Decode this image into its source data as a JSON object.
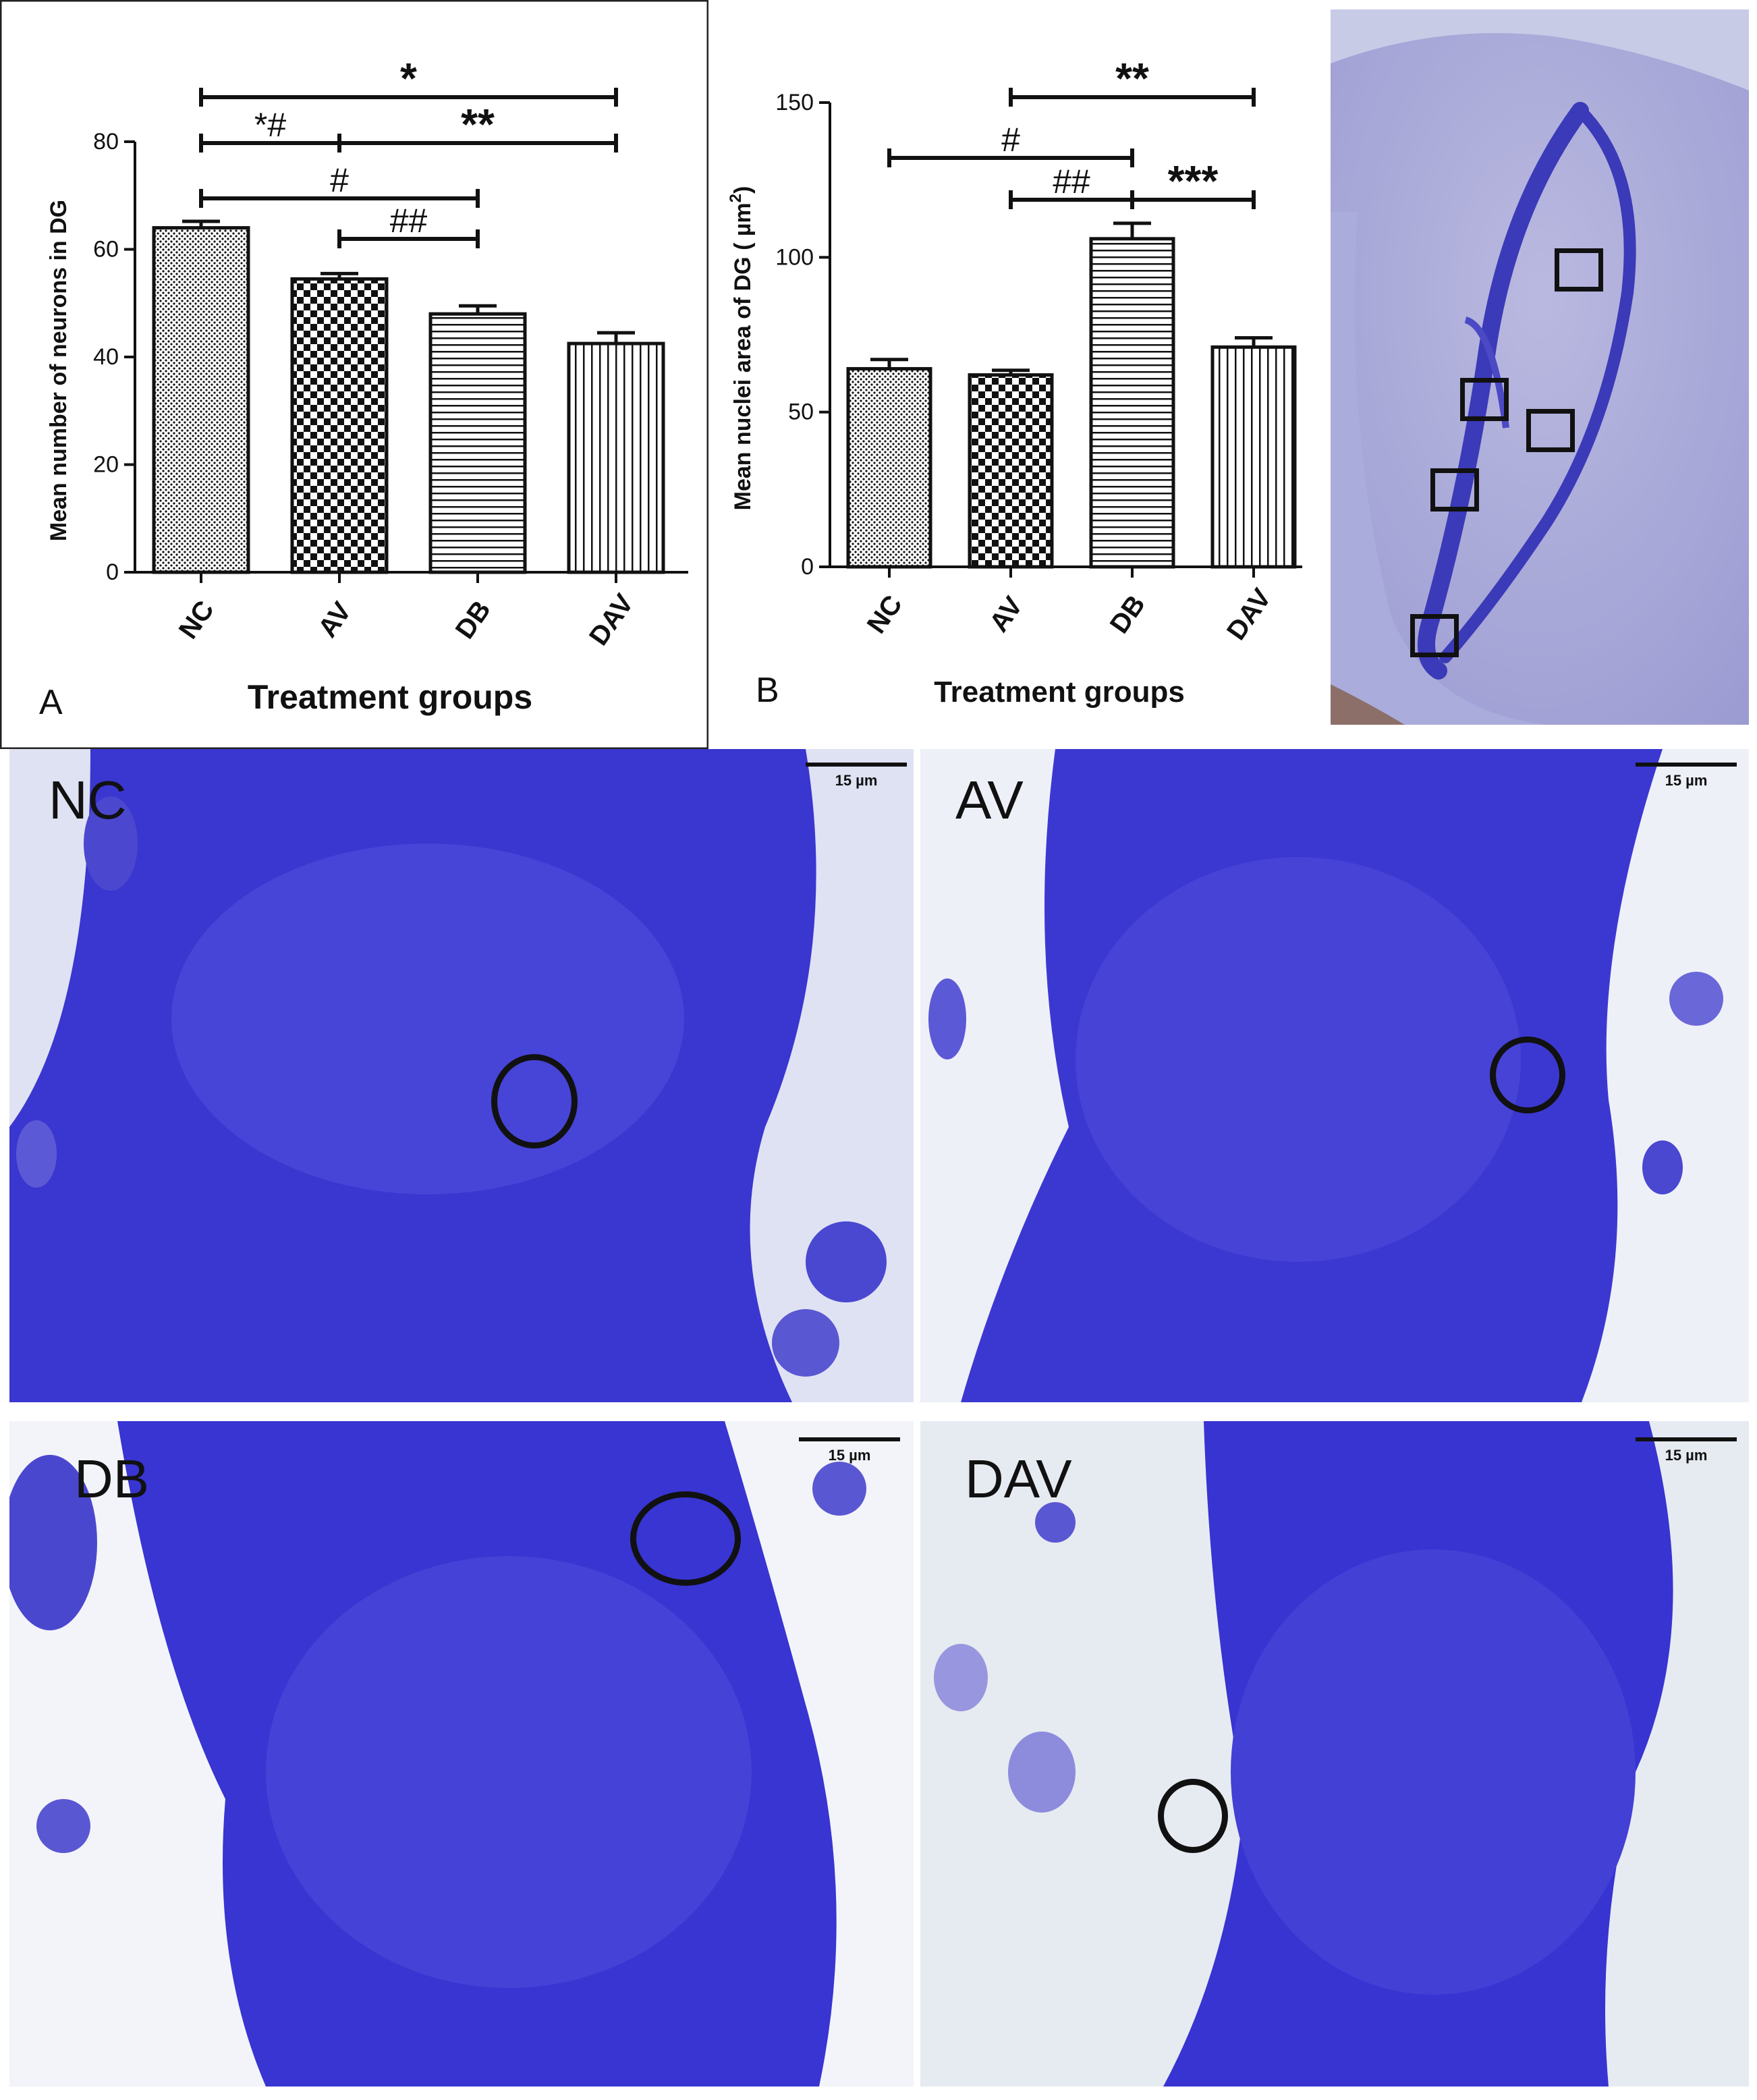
{
  "chart_data": [
    {
      "panel_letter": "A",
      "type": "bar",
      "categories": [
        "NC",
        "AV",
        "DB",
        "DAV"
      ],
      "values": [
        64,
        54.5,
        48,
        42.5
      ],
      "error": [
        1.2,
        1.0,
        1.5,
        2.0
      ],
      "patterns": [
        "dots",
        "checker",
        "hlines",
        "vlines"
      ],
      "ylabel": "Mean number of neurons in DG",
      "xlabel": "Treatment groups",
      "ylim": [
        0,
        80
      ],
      "yticks": [
        0,
        20,
        40,
        60,
        80
      ],
      "annotations": [
        {
          "label": "*",
          "from": "NC",
          "to": "DAV"
        },
        {
          "label": "*#",
          "from": "NC",
          "to": "AV"
        },
        {
          "label": "**",
          "from": "AV",
          "to": "DAV"
        },
        {
          "label": "#",
          "from": "NC",
          "to": "DB"
        },
        {
          "label": "##",
          "from": "AV",
          "to": "DB"
        }
      ]
    },
    {
      "panel_letter": "B",
      "type": "bar",
      "categories": [
        "NC",
        "AV",
        "DB",
        "DAV"
      ],
      "values": [
        64,
        62,
        106,
        71
      ],
      "error": [
        3,
        1.5,
        5,
        3
      ],
      "patterns": [
        "dots",
        "checker",
        "hlines",
        "vlines"
      ],
      "ylabel_prefix": "Mean nuclei area of DG ( ",
      "ylabel_unit": "µm",
      "ylabel_sup": "2",
      "ylabel_suffix": ")",
      "xlabel": "Treatment groups",
      "ylim": [
        0,
        150
      ],
      "yticks": [
        0,
        50,
        100,
        150
      ],
      "annotations": [
        {
          "label": "**",
          "from": "AV",
          "to": "DAV"
        },
        {
          "label": "#",
          "from": "NC",
          "to": "DB"
        },
        {
          "label": "##",
          "from": "AV",
          "to": "DB"
        },
        {
          "label": "***",
          "from": "DB",
          "to": "DAV"
        }
      ]
    }
  ],
  "micrographs": [
    {
      "label": "NC",
      "scale": "15 µm"
    },
    {
      "label": "AV",
      "scale": "15 µm"
    },
    {
      "label": "DB",
      "scale": "15 µm"
    },
    {
      "label": "DAV",
      "scale": "15 µm"
    }
  ],
  "colors": {
    "stain": "#3d3ad6",
    "background": "#e8ecf6",
    "ink": "#111111"
  }
}
